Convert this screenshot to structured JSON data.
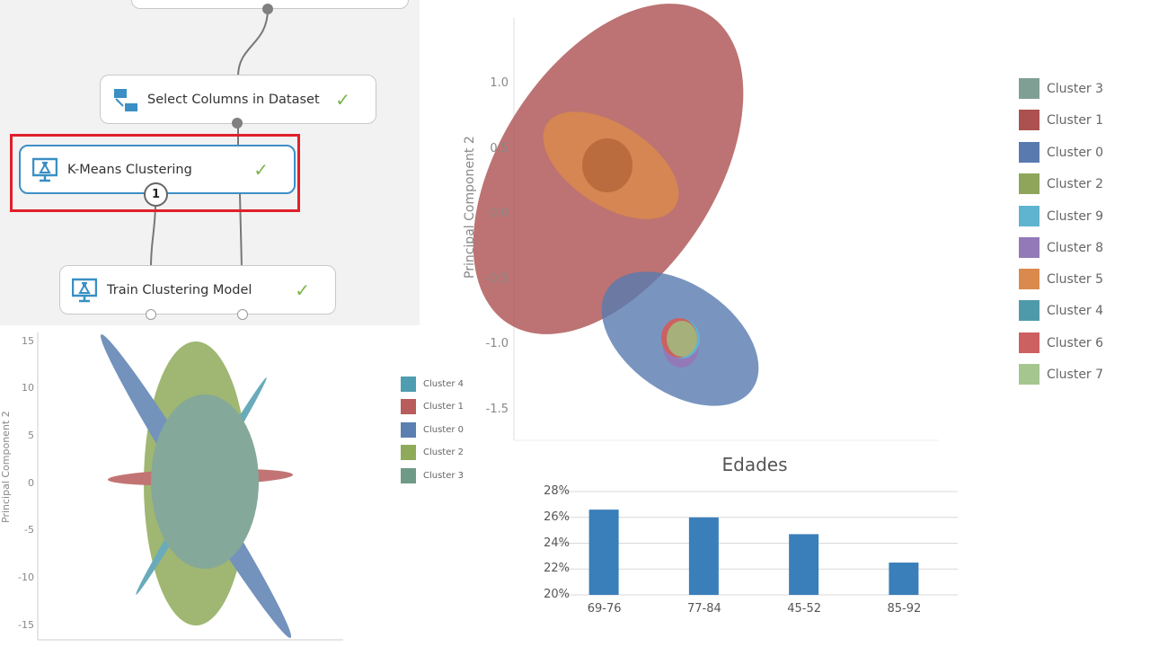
{
  "workflow": {
    "nodes": [
      {
        "label": "Select Columns in Dataset",
        "status": "✓"
      },
      {
        "label": "K-Means Clustering",
        "status": "✓",
        "badge": "1"
      },
      {
        "label": "Train Clustering Model",
        "status": "✓"
      }
    ]
  },
  "chart_data": [
    {
      "type": "scatter",
      "title": "",
      "ylabel": "Principal Component 2",
      "yticks": [
        "15",
        "10",
        "5",
        "0",
        "-5",
        "-10",
        "-15"
      ],
      "ylim": [
        -16,
        16
      ],
      "legend": [
        "Cluster 4",
        "Cluster 1",
        "Cluster 0",
        "Cluster 2",
        "Cluster 3"
      ],
      "colors": [
        "#4f9db0",
        "#b85c5c",
        "#5b7fb1",
        "#8fab5a",
        "#6f9a88"
      ],
      "legend_position": "right"
    },
    {
      "type": "scatter",
      "title": "",
      "ylabel": "Principal Component 2",
      "yticks": [
        "1.0",
        "0.5",
        "0.0",
        "-0.5",
        "-1.0",
        "-1.5"
      ],
      "ylim": [
        -1.75,
        1.5
      ],
      "legend": [
        "Cluster 3",
        "Cluster 1",
        "Cluster 0",
        "Cluster 2",
        "Cluster 9",
        "Cluster 8",
        "Cluster 5",
        "Cluster 4",
        "Cluster 6",
        "Cluster 7"
      ],
      "colors": [
        "#7f9f95",
        "#ad5050",
        "#587aaf",
        "#8fa55a",
        "#5fb4d0",
        "#9379b8",
        "#d98a4c",
        "#4f9aaa",
        "#cd6060",
        "#a6c690"
      ],
      "legend_position": "right"
    },
    {
      "type": "bar",
      "title": "Edades",
      "categories": [
        "69-76",
        "77-84",
        "45-52",
        "85-92"
      ],
      "values": [
        26.6,
        26.0,
        24.7,
        22.5
      ],
      "yticks": [
        "28%",
        "26%",
        "24%",
        "22%",
        "20%"
      ],
      "ylim": [
        20,
        28
      ],
      "color": "#3a7fba",
      "xlabel": "",
      "ylabel": ""
    }
  ]
}
